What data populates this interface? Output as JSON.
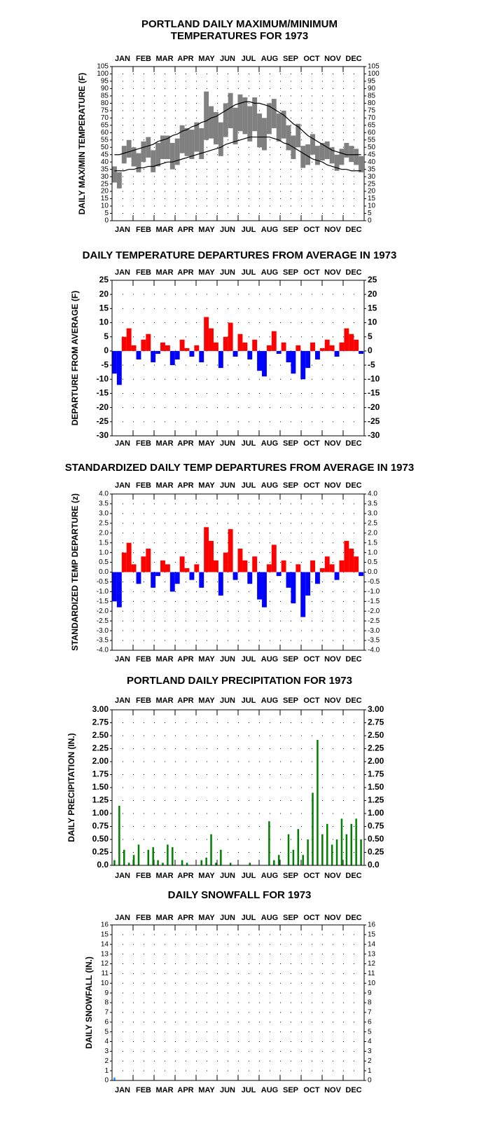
{
  "chart_data": [
    {
      "type": "range",
      "title": [
        "PORTLAND DAILY MAXIMUM/MINIMUM",
        "TEMPERATURES FOR 1973"
      ],
      "y_label": "DAILY MAX/MIN TEMPERATURE (F)",
      "categories": [
        "JAN",
        "FEB",
        "MAR",
        "APR",
        "MAY",
        "JUN",
        "JUL",
        "AUG",
        "SEP",
        "OCT",
        "NOV",
        "DEC"
      ],
      "xlim": [
        1,
        366
      ],
      "ylim": [
        0,
        105
      ],
      "yticks": [
        0,
        5,
        10,
        15,
        20,
        25,
        30,
        35,
        40,
        45,
        50,
        55,
        60,
        65,
        70,
        75,
        80,
        85,
        90,
        95,
        100,
        105
      ],
      "x": [
        1,
        8,
        15,
        22,
        29,
        36,
        43,
        50,
        57,
        64,
        71,
        78,
        85,
        92,
        99,
        106,
        113,
        120,
        127,
        134,
        141,
        148,
        155,
        162,
        169,
        176,
        183,
        190,
        197,
        204,
        211,
        218,
        225,
        232,
        239,
        246,
        253,
        260,
        267,
        274,
        281,
        288,
        295,
        302,
        309,
        316,
        323,
        330,
        337,
        344,
        351,
        358
      ],
      "high": [
        37,
        33,
        51,
        55,
        50,
        46,
        54,
        57,
        48,
        53,
        58,
        58,
        53,
        56,
        65,
        63,
        62,
        67,
        63,
        88,
        78,
        74,
        67,
        80,
        87,
        77,
        86,
        84,
        78,
        84,
        73,
        70,
        80,
        83,
        73,
        75,
        65,
        58,
        66,
        51,
        52,
        59,
        51,
        53,
        54,
        50,
        45,
        49,
        53,
        51,
        49,
        44
      ],
      "low": [
        26,
        22,
        39,
        43,
        37,
        33,
        40,
        43,
        33,
        37,
        42,
        42,
        35,
        38,
        46,
        44,
        42,
        47,
        42,
        55,
        56,
        52,
        44,
        57,
        63,
        52,
        61,
        59,
        54,
        61,
        50,
        48,
        59,
        63,
        54,
        56,
        48,
        42,
        50,
        36,
        38,
        45,
        38,
        41,
        42,
        39,
        34,
        38,
        43,
        40,
        38,
        33
      ],
      "normal_high": [
        45,
        45,
        46,
        47,
        48,
        49,
        50,
        51,
        52,
        54,
        55,
        56,
        58,
        59,
        61,
        62,
        64,
        65,
        67,
        68,
        70,
        71,
        73,
        75,
        77,
        79,
        80,
        81,
        81,
        80,
        80,
        79,
        78,
        76,
        74,
        72,
        69,
        66,
        64,
        61,
        58,
        56,
        54,
        52,
        50,
        48,
        47,
        46,
        45,
        45,
        45,
        45
      ],
      "normal_low": [
        34,
        34,
        34,
        35,
        35,
        36,
        36,
        37,
        37,
        38,
        39,
        40,
        40,
        41,
        42,
        43,
        44,
        45,
        46,
        47,
        48,
        49,
        50,
        52,
        53,
        54,
        55,
        56,
        57,
        57,
        57,
        57,
        57,
        56,
        55,
        53,
        52,
        50,
        48,
        46,
        44,
        42,
        41,
        40,
        38,
        37,
        36,
        35,
        35,
        34,
        34,
        34
      ],
      "range_color": "#808080",
      "normal_color": "#000000",
      "grid": true
    },
    {
      "type": "bar",
      "title": [
        "DAILY TEMPERATURE DEPARTURES FROM AVERAGE IN 1973"
      ],
      "y_label": "DEPARTURE FROM AVERAGE (F)",
      "categories": [
        "JAN",
        "FEB",
        "MAR",
        "APR",
        "MAY",
        "JUN",
        "JUL",
        "AUG",
        "SEP",
        "OCT",
        "NOV",
        "DEC"
      ],
      "xlim": [
        1,
        366
      ],
      "ylim": [
        -30,
        25
      ],
      "yticks": [
        -30,
        -25,
        -20,
        -15,
        -10,
        -5,
        0,
        5,
        10,
        15,
        20,
        25
      ],
      "x": [
        1,
        8,
        15,
        22,
        29,
        36,
        43,
        50,
        57,
        64,
        71,
        78,
        85,
        92,
        99,
        106,
        113,
        120,
        127,
        134,
        141,
        148,
        155,
        162,
        169,
        176,
        183,
        190,
        197,
        204,
        211,
        218,
        225,
        232,
        239,
        246,
        253,
        260,
        267,
        274,
        281,
        288,
        295,
        302,
        309,
        316,
        323,
        330,
        337,
        344,
        351,
        358
      ],
      "values": [
        -8,
        -12,
        5,
        8,
        2,
        -3,
        4,
        6,
        -4,
        -1,
        3,
        2,
        -5,
        -3,
        4,
        1,
        -2,
        2,
        -4,
        12,
        8,
        3,
        -6,
        5,
        10,
        -2,
        6,
        3,
        -3,
        4,
        -7,
        -9,
        2,
        7,
        -1,
        3,
        -4,
        -8,
        2,
        -10,
        -6,
        3,
        -3,
        1,
        4,
        2,
        -2,
        3,
        8,
        6,
        4,
        -1
      ],
      "pos_color": "#ff0000",
      "neg_color": "#0000ff",
      "grid": true
    },
    {
      "type": "bar",
      "title": [
        "STANDARDIZED DAILY TEMP DEPARTURES FROM AVERAGE IN 1973"
      ],
      "y_label": "STANDARDIZED TEMP DEPARTURE (z)",
      "categories": [
        "JAN",
        "FEB",
        "MAR",
        "APR",
        "MAY",
        "JUN",
        "JUL",
        "AUG",
        "SEP",
        "OCT",
        "NOV",
        "DEC"
      ],
      "xlim": [
        1,
        366
      ],
      "ylim": [
        -4,
        4
      ],
      "yticks": [
        {
          "value": -4,
          "label": "-4.0"
        },
        {
          "value": -3.5,
          "label": "-3.5"
        },
        {
          "value": -3,
          "label": "-3.0"
        },
        {
          "value": -2.5,
          "label": "-2.5"
        },
        {
          "value": -2,
          "label": "-2.0"
        },
        {
          "value": -1.5,
          "label": "-1.5"
        },
        {
          "value": -1,
          "label": "-1.0"
        },
        {
          "value": -0.5,
          "label": "-0.5"
        },
        {
          "value": 0,
          "label": "0.0"
        },
        {
          "value": 0.5,
          "label": "0.5"
        },
        {
          "value": 1,
          "label": "1.0"
        },
        {
          "value": 1.5,
          "label": "1.5"
        },
        {
          "value": 2,
          "label": "2.0"
        },
        {
          "value": 2.5,
          "label": "2.5"
        },
        {
          "value": 3,
          "label": "3.0"
        },
        {
          "value": 3.5,
          "label": "3.5"
        },
        {
          "value": 4,
          "label": "4.0"
        }
      ],
      "x": [
        1,
        8,
        15,
        22,
        29,
        36,
        43,
        50,
        57,
        64,
        71,
        78,
        85,
        92,
        99,
        106,
        113,
        120,
        127,
        134,
        141,
        148,
        155,
        162,
        169,
        176,
        183,
        190,
        197,
        204,
        211,
        218,
        225,
        232,
        239,
        246,
        253,
        260,
        267,
        274,
        281,
        288,
        295,
        302,
        309,
        316,
        323,
        330,
        337,
        344,
        351,
        358
      ],
      "values": [
        -1.5,
        -1.8,
        1.0,
        1.5,
        0.4,
        -0.6,
        0.8,
        1.2,
        -0.8,
        -0.2,
        0.6,
        0.4,
        -1.0,
        -0.6,
        0.8,
        0.2,
        -0.4,
        0.4,
        -0.8,
        2.3,
        1.6,
        0.6,
        -1.2,
        1.0,
        2.2,
        -0.4,
        1.2,
        0.6,
        -0.6,
        0.8,
        -1.4,
        -1.8,
        0.4,
        1.4,
        -0.2,
        0.6,
        -0.8,
        -1.6,
        0.4,
        -2.3,
        -1.2,
        0.6,
        -0.6,
        0.2,
        0.8,
        0.4,
        -0.4,
        0.6,
        1.6,
        1.2,
        0.8,
        -0.2
      ],
      "pos_color": "#ff0000",
      "neg_color": "#0000ff",
      "grid": true
    },
    {
      "type": "bar",
      "title": [
        "PORTLAND DAILY PRECIPITATION FOR 1973"
      ],
      "y_label": "DAILY PRECIPITATION (IN.)",
      "categories": [
        "JAN",
        "FEB",
        "MAR",
        "APR",
        "MAY",
        "JUN",
        "JUL",
        "AUG",
        "SEP",
        "OCT",
        "NOV",
        "DEC"
      ],
      "xlim": [
        1,
        366
      ],
      "ylim": [
        0,
        3
      ],
      "yticks": [
        {
          "value": 0,
          "label": "0.0"
        },
        {
          "value": 0.25,
          "label": "0.25"
        },
        {
          "value": 0.5,
          "label": "0.50"
        },
        {
          "value": 0.75,
          "label": "0.75"
        },
        {
          "value": 1,
          "label": "1.00"
        },
        {
          "value": 1.25,
          "label": "1.25"
        },
        {
          "value": 1.5,
          "label": "1.50"
        },
        {
          "value": 1.75,
          "label": "1.75"
        },
        {
          "value": 2,
          "label": "2.00"
        },
        {
          "value": 2.25,
          "label": "2.25"
        },
        {
          "value": 2.5,
          "label": "2.50"
        },
        {
          "value": 2.75,
          "label": "2.75"
        },
        {
          "value": 3,
          "label": "3.00"
        }
      ],
      "x": [
        1,
        8,
        15,
        22,
        29,
        36,
        43,
        50,
        57,
        64,
        71,
        78,
        85,
        92,
        99,
        106,
        113,
        120,
        127,
        134,
        141,
        148,
        155,
        162,
        169,
        176,
        183,
        190,
        197,
        204,
        211,
        218,
        225,
        232,
        239,
        246,
        253,
        260,
        267,
        274,
        281,
        288,
        295,
        302,
        309,
        316,
        323,
        330,
        337,
        344,
        351,
        358
      ],
      "values": [
        0.1,
        1.15,
        0.3,
        0.05,
        0.2,
        0.4,
        0,
        0.3,
        0.35,
        0.1,
        0.05,
        0.4,
        0.35,
        0,
        0.1,
        0.05,
        0,
        0,
        0.1,
        0.15,
        0.6,
        0.05,
        0.3,
        0,
        0.05,
        0,
        0,
        0,
        0.05,
        0,
        0,
        0,
        0.85,
        0.1,
        0.2,
        0,
        0.6,
        0.3,
        0.7,
        0.2,
        0.5,
        1.4,
        2.42,
        0.6,
        0.8,
        0.4,
        0.5,
        0.9,
        0.6,
        0.8,
        0.9,
        0.5
      ],
      "pos_color": "#008000",
      "neg_color": "#008000",
      "grid": true
    },
    {
      "type": "bar",
      "title": [
        "DAILY SNOWFALL FOR 1973"
      ],
      "y_label": "DAILY SNOWFALL (IN.)",
      "categories": [
        "JAN",
        "FEB",
        "MAR",
        "APR",
        "MAY",
        "JUN",
        "JUL",
        "AUG",
        "SEP",
        "OCT",
        "NOV",
        "DEC"
      ],
      "xlim": [
        1,
        366
      ],
      "ylim": [
        0,
        16
      ],
      "yticks": [
        0,
        1,
        2,
        3,
        4,
        5,
        6,
        7,
        8,
        9,
        10,
        11,
        12,
        13,
        14,
        15,
        16
      ],
      "x": [
        1,
        8,
        15,
        22,
        29,
        36,
        43,
        50,
        57,
        64,
        71,
        78,
        85,
        92,
        99,
        106,
        113,
        120,
        127,
        134,
        141,
        148,
        155,
        162,
        169,
        176,
        183,
        190,
        197,
        204,
        211,
        218,
        225,
        232,
        239,
        246,
        253,
        260,
        267,
        274,
        281,
        288,
        295,
        302,
        309,
        316,
        323,
        330,
        337,
        344,
        351,
        358
      ],
      "values": [
        0.3,
        0,
        0,
        0,
        0,
        0,
        0,
        0,
        0,
        0,
        0,
        0,
        0,
        0,
        0,
        0,
        0,
        0,
        0,
        0,
        0,
        0,
        0,
        0,
        0,
        0,
        0,
        0,
        0,
        0,
        0,
        0,
        0,
        0,
        0,
        0,
        0,
        0,
        0,
        0,
        0,
        0,
        0,
        0,
        0,
        0,
        0,
        0,
        0,
        0,
        0,
        0
      ],
      "pos_color": "#1e90ff",
      "neg_color": "#1e90ff",
      "grid": true
    }
  ]
}
